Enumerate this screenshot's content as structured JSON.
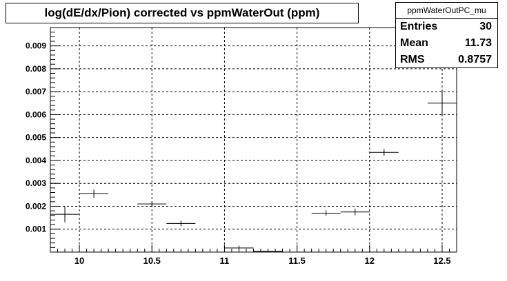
{
  "title": "log(dE/dx/Pion) corrected vs ppmWaterOut (ppm)",
  "stats": {
    "name": "ppmWaterOutPC_mu",
    "rows": [
      {
        "label": "Entries",
        "value": "30"
      },
      {
        "label": "Mean",
        "value": "11.73"
      },
      {
        "label": "RMS",
        "value": "0.8757"
      }
    ]
  },
  "chart_data": {
    "type": "scatter",
    "xlim": [
      9.8,
      12.6
    ],
    "ylim": [
      0,
      0.0098
    ],
    "grid": true,
    "xticks": [
      "10",
      "10.5",
      "11",
      "11.5",
      "12",
      "12.5"
    ],
    "yticks": [
      "0.001",
      "0.002",
      "0.003",
      "0.004",
      "0.005",
      "0.006",
      "0.007",
      "0.008",
      "0.009"
    ],
    "points": [
      {
        "x": 9.9,
        "y": 0.00165,
        "xerr": 0.1,
        "yerr": 0.00035
      },
      {
        "x": 10.1,
        "y": 0.00255,
        "xerr": 0.1,
        "yerr": 0.00018
      },
      {
        "x": 10.5,
        "y": 0.0021,
        "xerr": 0.1,
        "yerr": 8e-05
      },
      {
        "x": 10.7,
        "y": 0.00125,
        "xerr": 0.1,
        "yerr": 0.00012
      },
      {
        "x": 11.1,
        "y": 0.00018,
        "xerr": 0.1,
        "yerr": 0.0001
      },
      {
        "x": 11.3,
        "y": 3e-05,
        "xerr": 0.1,
        "yerr": 3e-05
      },
      {
        "x": 11.7,
        "y": 0.0017,
        "xerr": 0.1,
        "yerr": 0.00012
      },
      {
        "x": 11.9,
        "y": 0.00175,
        "xerr": 0.1,
        "yerr": 0.00015
      },
      {
        "x": 12.1,
        "y": 0.00435,
        "xerr": 0.1,
        "yerr": 0.00015
      },
      {
        "x": 12.5,
        "y": 0.0065,
        "xerr": 0.1,
        "yerr": 0.00055
      }
    ]
  }
}
